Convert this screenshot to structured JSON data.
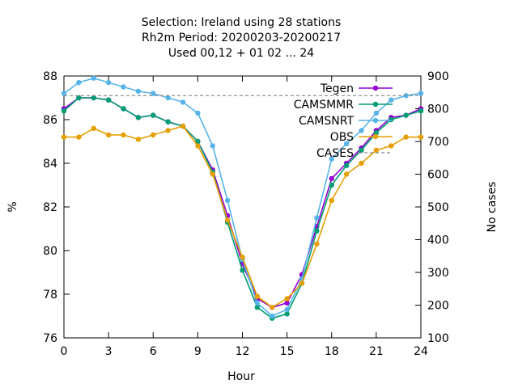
{
  "chart_data": {
    "type": "line",
    "title_lines": [
      "Selection: Ireland using    28 stations",
      "Rh2m   Period: 20200203-20200217",
      "Used  00,12  + 01 02 ... 24"
    ],
    "xlabel": "Hour",
    "ylabel": "%",
    "y2label": "No cases",
    "xlim": [
      0,
      24
    ],
    "ylim": [
      76,
      88
    ],
    "y2lim": [
      100,
      900
    ],
    "xticks": [
      0,
      3,
      6,
      9,
      12,
      15,
      18,
      21,
      24
    ],
    "yticks": [
      76,
      78,
      80,
      82,
      84,
      86,
      88
    ],
    "y2ticks": [
      100,
      200,
      300,
      400,
      500,
      600,
      700,
      800,
      900
    ],
    "legend_position": "top-right",
    "x": [
      0,
      1,
      2,
      3,
      4,
      5,
      6,
      7,
      8,
      9,
      10,
      11,
      12,
      13,
      14,
      15,
      16,
      17,
      18,
      19,
      20,
      21,
      22,
      23,
      24
    ],
    "series": [
      {
        "name": "Tegen",
        "color": "#9400d3",
        "marker": "point",
        "values": [
          86.5,
          87.0,
          87.0,
          86.9,
          86.5,
          86.1,
          86.2,
          85.9,
          85.7,
          85.0,
          83.7,
          81.6,
          79.4,
          77.8,
          77.4,
          77.6,
          78.9,
          81.1,
          83.3,
          84.0,
          84.7,
          85.5,
          86.1,
          86.2,
          86.5
        ]
      },
      {
        "name": "CAMSMMR",
        "color": "#009e73",
        "marker": "point",
        "values": [
          86.4,
          87.0,
          87.0,
          86.9,
          86.5,
          86.1,
          86.2,
          85.9,
          85.7,
          85.0,
          83.6,
          81.3,
          79.1,
          77.4,
          76.9,
          77.1,
          78.5,
          80.9,
          83.0,
          83.9,
          84.6,
          85.4,
          86.0,
          86.2,
          86.4
        ]
      },
      {
        "name": "CAMSNRT",
        "color": "#56b4e9",
        "marker": "point",
        "values": [
          87.2,
          87.7,
          87.9,
          87.7,
          87.5,
          87.3,
          87.2,
          87.0,
          86.8,
          86.3,
          84.8,
          82.3,
          79.6,
          77.6,
          77.0,
          77.3,
          78.7,
          81.5,
          84.2,
          84.9,
          85.5,
          86.3,
          86.9,
          87.1,
          87.2
        ]
      },
      {
        "name": "OBS",
        "color": "#e69f00",
        "marker": "point",
        "values": [
          85.2,
          85.2,
          85.6,
          85.3,
          85.3,
          85.1,
          85.3,
          85.5,
          85.7,
          84.8,
          83.5,
          81.4,
          79.7,
          77.9,
          77.4,
          77.8,
          78.5,
          80.3,
          82.3,
          83.5,
          84.0,
          84.6,
          84.8,
          85.2,
          85.2
        ]
      },
      {
        "name": "CASES",
        "color": "#888888",
        "axis": "y2",
        "dashed": true,
        "values": [
          840,
          840,
          840,
          840,
          840,
          840,
          840,
          840,
          840,
          840,
          840,
          840,
          840,
          840,
          840,
          840,
          840,
          840,
          840,
          840,
          840,
          840,
          840,
          840,
          840
        ]
      }
    ]
  }
}
